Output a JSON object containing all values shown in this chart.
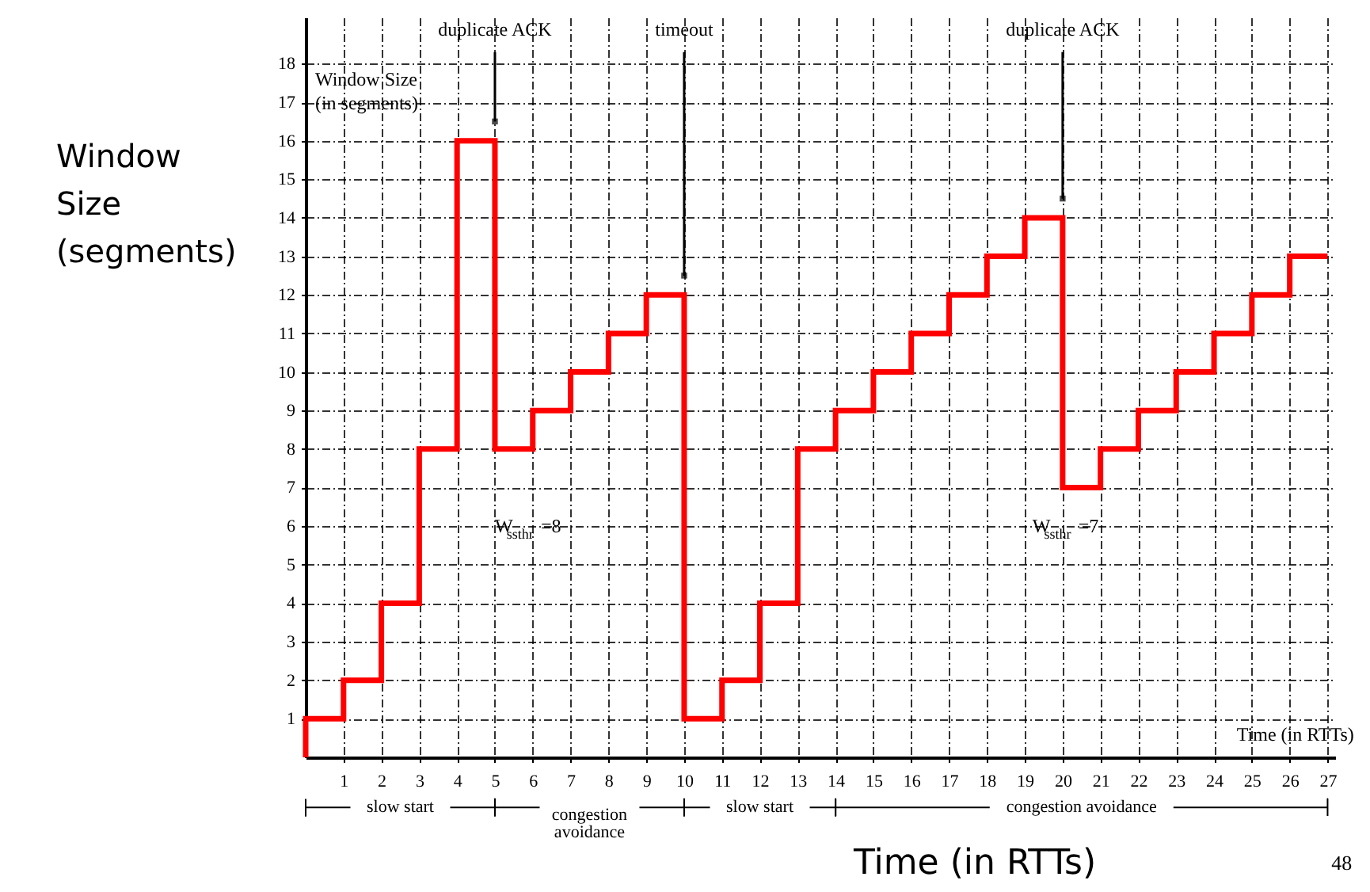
{
  "chart_data": {
    "type": "step",
    "xlabel": "Time (in RTTs)",
    "ylabel": "Window Size (segments)",
    "x": [
      0,
      0,
      1,
      2,
      3,
      4,
      5,
      6,
      7,
      8,
      9,
      10,
      11,
      12,
      13,
      14,
      15,
      16,
      17,
      18,
      19,
      20,
      21,
      22,
      23,
      24,
      25,
      26,
      27
    ],
    "series": [
      {
        "color": "#ff0000",
        "values": [
          0,
          1,
          2,
          4,
          8,
          16,
          8,
          9,
          10,
          11,
          12,
          1,
          2,
          4,
          8,
          9,
          10,
          11,
          12,
          13,
          14,
          7,
          8,
          9,
          10,
          11,
          12,
          13,
          13
        ]
      }
    ],
    "xlim": [
      0,
      27.2
    ],
    "ylim": [
      0,
      19.2
    ],
    "xticks": [
      1,
      2,
      3,
      4,
      5,
      6,
      7,
      8,
      9,
      10,
      11,
      12,
      13,
      14,
      15,
      16,
      17,
      18,
      19,
      20,
      21,
      22,
      23,
      24,
      25,
      26,
      27
    ],
    "yticks": [
      1,
      2,
      3,
      4,
      5,
      6,
      7,
      8,
      9,
      10,
      11,
      12,
      13,
      14,
      15,
      16,
      17,
      18
    ],
    "grid": true,
    "annotations": [
      {
        "text": "duplicate ACK",
        "x": 5,
        "y": 16.5
      },
      {
        "text": "timeout",
        "x": 10,
        "y": 12.5
      },
      {
        "text": "duplicate ACK",
        "x": 20,
        "y": 14.5
      },
      "Window Size (in segments)",
      "W$_{ssthr}$=8",
      "W$_{ssthr}$=7",
      "Time (in RTTs)",
      "48",
      "slow start",
      "congestion avoidance",
      "slow start",
      "congestion avoidance"
    ]
  }
}
